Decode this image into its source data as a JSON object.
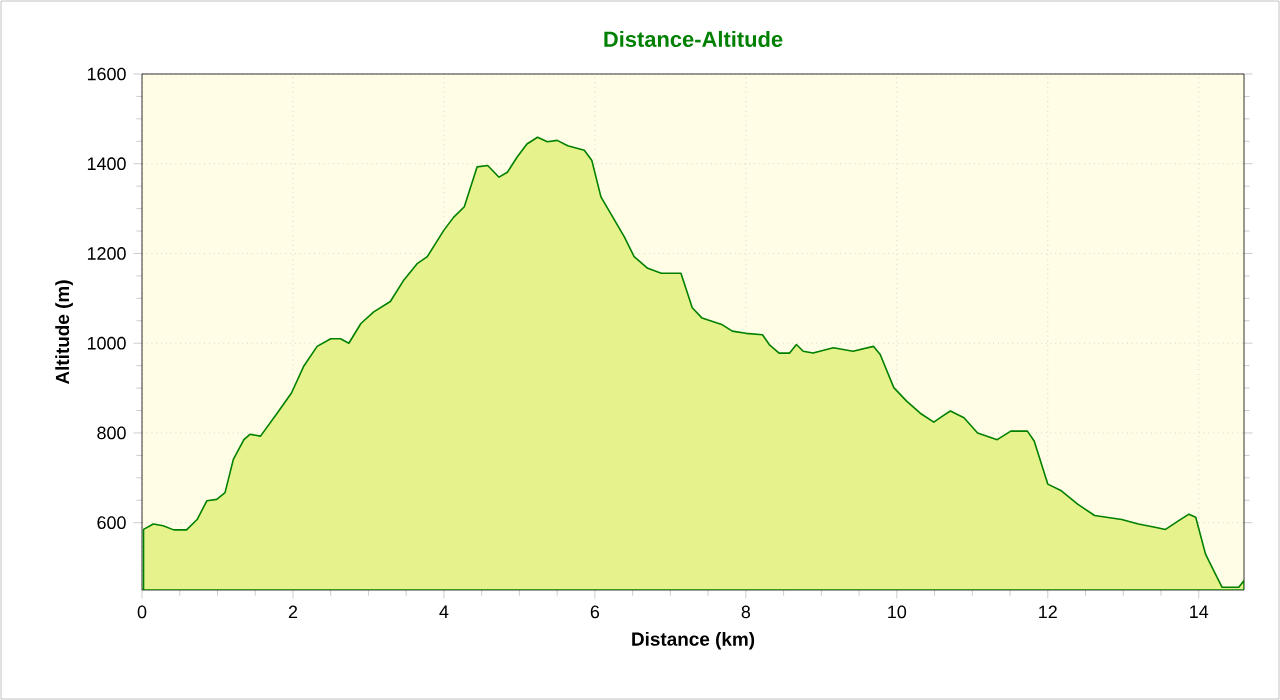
{
  "chart_data": {
    "type": "area",
    "title": "Distance-Altitude",
    "xlabel": "Distance (km)",
    "ylabel": "Altitude (m)",
    "color": "#008000",
    "x": [
      0.02,
      0.15,
      0.28,
      0.42,
      0.59,
      0.73,
      0.86,
      0.99,
      1.1,
      1.21,
      1.35,
      1.43,
      1.57,
      1.79,
      1.98,
      2.14,
      2.32,
      2.5,
      2.63,
      2.74,
      2.9,
      3.07,
      3.29,
      3.47,
      3.65,
      3.78,
      4.0,
      4.13,
      4.27,
      4.44,
      4.58,
      4.73,
      4.84,
      4.97,
      5.1,
      5.24,
      5.37,
      5.5,
      5.64,
      5.86,
      5.96,
      6.08,
      6.21,
      6.39,
      6.52,
      6.7,
      6.88,
      7.14,
      7.29,
      7.42,
      7.69,
      7.82,
      8.0,
      8.22,
      8.31,
      8.44,
      8.58,
      8.67,
      8.76,
      8.89,
      9.16,
      9.42,
      9.69,
      9.78,
      9.96,
      10.13,
      10.31,
      10.49,
      10.62,
      10.71,
      10.89,
      11.07,
      11.33,
      11.51,
      11.73,
      11.82,
      12.0,
      12.18,
      12.4,
      12.62,
      12.98,
      13.2,
      13.42,
      13.56,
      13.73,
      13.87,
      13.96,
      14.09,
      14.22,
      14.31,
      14.53,
      14.6
    ],
    "values": [
      585,
      597,
      593,
      584,
      584,
      607,
      649,
      652,
      667,
      741,
      785,
      797,
      793,
      844,
      889,
      948,
      993,
      1010,
      1010,
      1000,
      1044,
      1070,
      1093,
      1141,
      1178,
      1193,
      1252,
      1281,
      1304,
      1393,
      1396,
      1370,
      1381,
      1415,
      1444,
      1459,
      1449,
      1452,
      1440,
      1430,
      1407,
      1326,
      1289,
      1237,
      1193,
      1167,
      1156,
      1156,
      1079,
      1056,
      1041,
      1027,
      1022,
      1019,
      997,
      978,
      978,
      997,
      982,
      978,
      990,
      982,
      993,
      975,
      901,
      871,
      844,
      824,
      839,
      849,
      834,
      800,
      785,
      804,
      804,
      782,
      686,
      671,
      641,
      616,
      607,
      597,
      590,
      585,
      604,
      619,
      612,
      530,
      486,
      456,
      456,
      471
    ],
    "xlim": [
      0,
      14.6
    ],
    "ylim": [
      450,
      1600
    ],
    "xticks": [
      0,
      2,
      4,
      6,
      8,
      10,
      12,
      14
    ],
    "yticks": [
      600,
      800,
      1000,
      1200,
      1400,
      1600
    ],
    "grid": true
  }
}
